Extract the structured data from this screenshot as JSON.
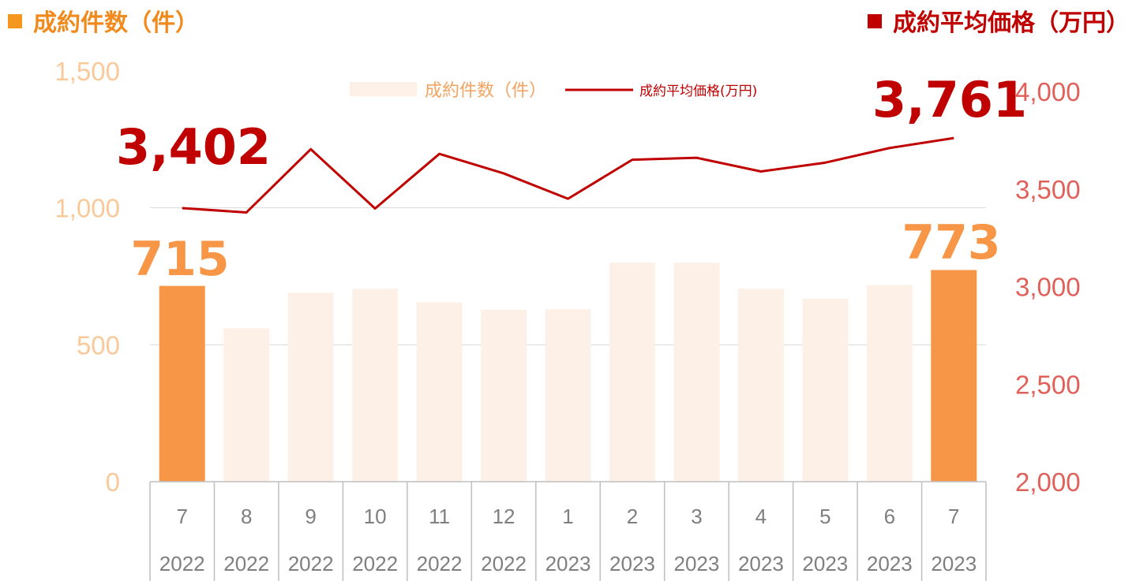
{
  "header": {
    "left_title": "成約件数（件）",
    "right_title": "成約平均価格（万円）"
  },
  "colors": {
    "bar_highlight": "#f79646",
    "bar_faded": "#fdf1e7",
    "line": "#c00000",
    "left_axis_text": "#f9c99a",
    "right_axis_text": "#e0605a",
    "count_label": "#f79646",
    "price_label": "#c00000",
    "header_left": "#f08a1c",
    "header_right": "#c00000"
  },
  "chart_data": {
    "type": "bar+line",
    "categories": [
      {
        "month": "7",
        "year": "2022"
      },
      {
        "month": "8",
        "year": "2022"
      },
      {
        "month": "9",
        "year": "2022"
      },
      {
        "month": "10",
        "year": "2022"
      },
      {
        "month": "11",
        "year": "2022"
      },
      {
        "month": "12",
        "year": "2022"
      },
      {
        "month": "1",
        "year": "2023"
      },
      {
        "month": "2",
        "year": "2023"
      },
      {
        "month": "3",
        "year": "2023"
      },
      {
        "month": "4",
        "year": "2023"
      },
      {
        "month": "5",
        "year": "2023"
      },
      {
        "month": "6",
        "year": "2023"
      },
      {
        "month": "7",
        "year": "2023"
      }
    ],
    "series": [
      {
        "name": "成約件数(件)",
        "kind": "bar",
        "axis": "left",
        "values": [
          715,
          560,
          690,
          705,
          655,
          628,
          630,
          800,
          800,
          705,
          668,
          718,
          773
        ],
        "highlight_indices": [
          0,
          12
        ]
      },
      {
        "name": "成約平均価格(万円)",
        "kind": "line",
        "axis": "right",
        "values": [
          3402,
          3380,
          3704,
          3400,
          3680,
          3580,
          3450,
          3650,
          3660,
          3590,
          3635,
          3710,
          3761
        ]
      }
    ],
    "left_axis": {
      "min": 0,
      "max": 1500,
      "ticks": [
        "0",
        "500",
        "1,000",
        "1,500"
      ]
    },
    "right_axis": {
      "min": 2000,
      "max": 4000,
      "ticks": [
        "2,000",
        "2,500",
        "3,000",
        "3,500",
        "4,000"
      ]
    },
    "annotations": {
      "count_first": "715",
      "count_last": "773",
      "price_first": "3,402",
      "price_last": "3,761"
    },
    "legend": {
      "position": "top-center",
      "bar_label": "成約件数（件）",
      "line_label": "成約平均価格(万円)"
    },
    "grid": true
  }
}
